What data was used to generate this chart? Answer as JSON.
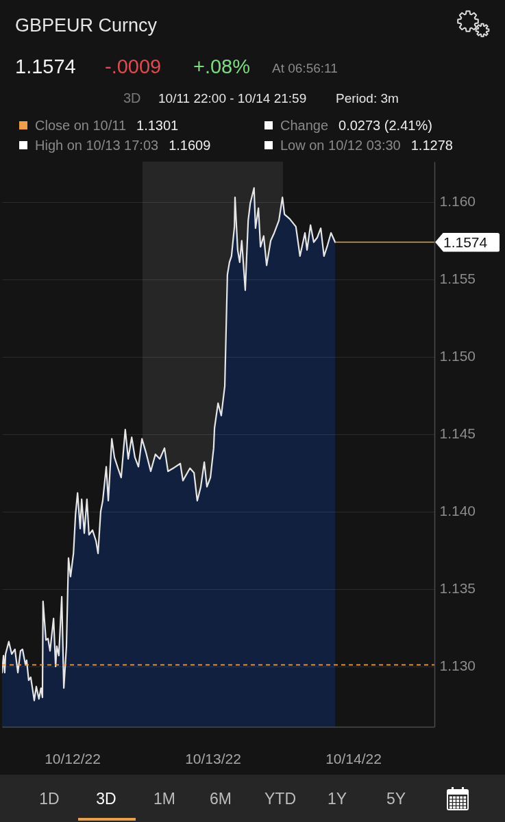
{
  "chart_data": {
    "type": "area",
    "title": "GBPEUR Curncy",
    "x": [
      "--10-11T22:00",
      "--10-11T22:15",
      "--10-11T22:27",
      "--10-11T22:36",
      "--10-11T23:09",
      "--10-11T23:39",
      "--10-12T00:12",
      "--10-12T00:42",
      "--10-12T01:09",
      "--10-12T01:30",
      "--10-12T02:00",
      "--10-12T02:12",
      "--10-12T02:33",
      "--10-12T02:54",
      "--10-12T03:30",
      "--10-12T03:51",
      "--10-12T04:18",
      "--10-12T04:39",
      "--10-12T04:54",
      "--10-12T05:00",
      "--10-12T05:30",
      "--10-12T05:51",
      "--10-12T06:12",
      "--10-12T06:48",
      "--10-12T07:09",
      "--10-12T07:21",
      "--10-12T07:42",
      "--10-12T08:12",
      "--10-12T08:33",
      "--10-12T09:00",
      "--10-12T09:21",
      "--10-12T09:42",
      "--10-12T10:12",
      "--10-12T10:33",
      "--10-12T10:54",
      "--10-12T11:21",
      "--10-12T11:36",
      "--10-12T12:03",
      "--10-12T12:30",
      "--10-12T12:51",
      "--10-12T13:27",
      "--10-12T14:03",
      "--10-12T14:24",
      "--10-12T14:51",
      "--10-12T15:12",
      "--10-12T15:48",
      "--10-12T16:09",
      "--10-12T16:45",
      "--10-12T17:12",
      "--10-12T17:48",
      "--10-12T18:21",
      "--10-12T19:03",
      "--10-12T19:33",
      "--10-12T20:09",
      "--10-12T20:42",
      "--10-12T21:18",
      "--10-12T21:54",
      "--10-12T22:36",
      "--10-12T23:24",
      "--10-13T00:12",
      "--10-13T00:57",
      "--10-13T01:45",
      "--10-13T02:21",
      "--10-13T03:15",
      "--10-13T04:27",
      "--10-13T04:54",
      "--10-13T06:06",
      "--10-13T06:48",
      "--10-13T07:21",
      "--10-13T07:57",
      "--10-13T08:33",
      "--10-13T09:00",
      "--10-13T09:36",
      "--10-13T10:09",
      "--10-13T10:18",
      "--10-13T10:54",
      "--10-13T11:27",
      "--10-13T12:03",
      "--10-13T12:30",
      "--10-13T12:51",
      "--10-13T13:12",
      "--10-13T13:42",
      "--10-13T13:48",
      "--10-13T14:15",
      "--10-13T14:36",
      "--10-13T14:57",
      "--10-13T15:33",
      "--10-13T16:03",
      "--10-13T16:24",
      "--10-13T17:03",
      "--10-13T17:18",
      "--10-13T17:48",
      "--10-13T18:09",
      "--10-13T18:42",
      "--10-13T19:12",
      "--10-13T19:54",
      "--10-13T20:30",
      "--10-13T21:18",
      "--10-13T21:54",
      "--10-13T22:15",
      "--10-13T23:09",
      "--10-14T00:12",
      "--10-14T00:54",
      "--10-14T01:45",
      "--10-14T02:06",
      "--10-14T02:42",
      "--10-14T03:15",
      "--10-14T03:51",
      "--10-14T04:27",
      "--10-14T05:00",
      "--10-14T05:36",
      "--10-14T06:12",
      "--10-14T06:54"
    ],
    "values": [
      1.1296,
      1.1307,
      1.1296,
      1.1308,
      1.1316,
      1.1308,
      1.1311,
      1.1296,
      1.131,
      1.1311,
      1.1301,
      1.1304,
      1.1291,
      1.1293,
      1.1278,
      1.1287,
      1.1279,
      1.1286,
      1.128,
      1.1342,
      1.1317,
      1.1318,
      1.131,
      1.1331,
      1.13,
      1.1313,
      1.1307,
      1.1345,
      1.1286,
      1.1313,
      1.137,
      1.1358,
      1.1373,
      1.1398,
      1.1412,
      1.1389,
      1.1408,
      1.1386,
      1.1408,
      1.1385,
      1.1388,
      1.1381,
      1.1373,
      1.14,
      1.1407,
      1.1429,
      1.1407,
      1.1447,
      1.1435,
      1.1428,
      1.1422,
      1.1453,
      1.1434,
      1.1448,
      1.1435,
      1.1429,
      1.1447,
      1.1438,
      1.1426,
      1.1437,
      1.1434,
      1.1441,
      1.1426,
      1.1428,
      1.1431,
      1.142,
      1.1428,
      1.1425,
      1.1407,
      1.1416,
      1.1432,
      1.1416,
      1.1422,
      1.1441,
      1.1454,
      1.147,
      1.1462,
      1.1481,
      1.1553,
      1.1561,
      1.1565,
      1.1584,
      1.1603,
      1.1569,
      1.1561,
      1.1575,
      1.1543,
      1.1588,
      1.1599,
      1.1609,
      1.1583,
      1.1596,
      1.1571,
      1.1578,
      1.1559,
      1.1575,
      1.158,
      1.1588,
      1.1603,
      1.1592,
      1.1589,
      1.1584,
      1.1565,
      1.158,
      1.1569,
      1.1585,
      1.1574,
      1.1577,
      1.1583,
      1.1565,
      1.1572,
      1.158,
      1.1574
    ],
    "color": "#11203f",
    "xlim": [
      "--10-11T22:00",
      "--10-14T23:52"
    ],
    "xticks": [
      {
        "value": "--10-12T10:00",
        "label": "10/12/22"
      },
      {
        "value": "--10-13T10:00",
        "label": "10/13/22"
      },
      {
        "value": "--10-14T10:00",
        "label": "10/14/22"
      }
    ],
    "ylim": [
      1.1261,
      1.1626
    ],
    "yticks": [
      {
        "value": 1.13,
        "label": "1.130"
      },
      1.135,
      {
        "value": 1.14,
        "label": "1.140"
      },
      1.145,
      {
        "value": 1.15,
        "label": "1.150"
      },
      1.155,
      {
        "value": 1.16,
        "label": "1.160"
      }
    ],
    "grid": "y",
    "bands": [
      {
        "axis": "x",
        "from": "--10-12T22:00",
        "to": "--10-13T22:00",
        "color": "#262626"
      }
    ],
    "ref_lines": [
      {
        "axis": "y",
        "value": 1.1301,
        "color": "#f0a044",
        "line_style": "dashed"
      },
      {
        "axis": "y",
        "value": 1.1574,
        "label": "1.1574",
        "color": "#f0a044"
      }
    ],
    "annotations": [
      "1.1574",
      "-.0009",
      "+.08%",
      "At 06:56:11",
      "3D",
      "10/11 22:00 - 10/14 21:59",
      "Period: 3m",
      "Close on 10/11",
      "1.1301",
      "Change",
      "0.0273 (2.41%)",
      "High on 10/13 17:03",
      "1.1609",
      "Low on 10/12 03:30",
      "1.1278",
      "1D",
      "3D",
      "1M",
      "6M",
      "YTD",
      "1Y",
      "5Y"
    ]
  }
}
